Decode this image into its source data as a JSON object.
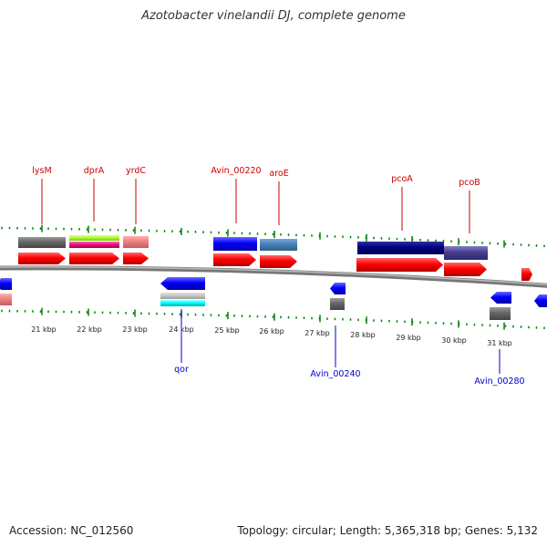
{
  "title": "Azotobacter vinelandii DJ, complete genome",
  "footer": {
    "accession": "Accession: NC_012560",
    "summary": "Topology: circular; Length: 5,365,318 bp; Genes: 5,132"
  },
  "colors": {
    "tick": "#008000",
    "backbone": "#888888",
    "forward_label": "#cc0000",
    "reverse_label": "#0000cc",
    "cds_forward": "#ff0000",
    "cds_reverse": "#0000ff"
  },
  "scale_labels": [
    "21 kbp",
    "22 kbp",
    "23 kbp",
    "24 kbp",
    "25 kbp",
    "26 kbp",
    "27 kbp",
    "28 kbp",
    "29 kbp",
    "30 kbp",
    "31 kbp"
  ],
  "forward_gene_labels": [
    "lysM",
    "dprA",
    "yrdC",
    "Avin_00220",
    "aroE",
    "pcoA",
    "pcoB"
  ],
  "reverse_gene_labels": [
    "qor",
    "Avin_00240",
    "Avin_00280"
  ]
}
